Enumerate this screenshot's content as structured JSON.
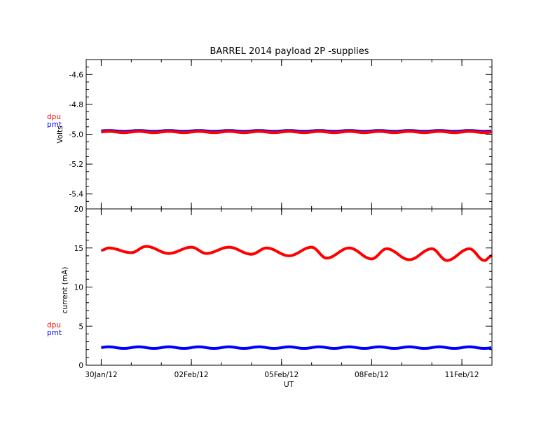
{
  "chart_data": [
    {
      "type": "line",
      "title": "BARREL 2014 payload 2P -supplies",
      "xlabel": "",
      "ylabel": "Volts",
      "ylim": [
        -5.5,
        -4.5
      ],
      "yticks": [
        "-4.6",
        "-4.8",
        "-5.0",
        "-5.2",
        "-5.4"
      ],
      "ytick_values": [
        -4.6,
        -4.8,
        -5.0,
        -5.2,
        -5.4
      ],
      "legend": [
        {
          "name": "dpu",
          "color": "#ff0000"
        },
        {
          "name": "pmt",
          "color": "#0000ff"
        }
      ],
      "series": [
        {
          "name": "pmt",
          "color": "#0000ff",
          "baseline": -4.978,
          "amplitude": 0.003,
          "period_days": 1.0
        },
        {
          "name": "dpu",
          "color": "#ff0000",
          "baseline": -4.985,
          "amplitude": 0.004,
          "period_days": 1.0
        }
      ]
    },
    {
      "type": "line",
      "xlabel": "UT",
      "ylabel": "current (mA)",
      "ylim": [
        0,
        20
      ],
      "yticks": [
        "0",
        "5",
        "10",
        "15",
        "20"
      ],
      "ytick_values": [
        0,
        5,
        10,
        15,
        20
      ],
      "x_start": "29Jan12 12:00",
      "x_end": "12Feb12 00:00",
      "xticks": [
        "30Jan/12",
        "02Feb/12",
        "05Feb/12",
        "08Feb/12",
        "11Feb/12"
      ],
      "legend": [
        {
          "name": "dpu",
          "color": "#ff0000"
        },
        {
          "name": "pmt",
          "color": "#0000ff"
        }
      ],
      "series": [
        {
          "name": "dpu",
          "color": "#ff0000",
          "peaks": [
            [
              "30Jan12 06:00",
              15.0
            ],
            [
              "31Jan12 12:00",
              15.2
            ],
            [
              "02Feb12 00:00",
              15.1
            ],
            [
              "03Feb12 06:00",
              15.1
            ],
            [
              "04Feb12 12:00",
              15.0
            ],
            [
              "06Feb12 00:00",
              15.1
            ],
            [
              "07Feb12 06:00",
              15.0
            ],
            [
              "08Feb12 12:00",
              14.9
            ],
            [
              "10Feb12 00:00",
              14.9
            ],
            [
              "11Feb12 06:00",
              14.9
            ]
          ],
          "troughs": [
            [
              "31Jan12 00:00",
              14.4
            ],
            [
              "01Feb12 06:00",
              14.3
            ],
            [
              "02Feb12 12:00",
              14.3
            ],
            [
              "04Feb12 00:00",
              14.2
            ],
            [
              "05Feb12 06:00",
              14.0
            ],
            [
              "06Feb12 12:00",
              13.7
            ],
            [
              "08Feb12 00:00",
              13.6
            ],
            [
              "09Feb12 06:00",
              13.5
            ],
            [
              "10Feb12 12:00",
              13.4
            ],
            [
              "11Feb12 18:00",
              13.4
            ]
          ],
          "start": [
            "30Jan12 00:00",
            14.7
          ],
          "end": [
            "12Feb12 00:00",
            14.0
          ]
        },
        {
          "name": "pmt",
          "color": "#0000ff",
          "baseline": 2.25,
          "amplitude": 0.1,
          "period_days": 1.0
        }
      ]
    }
  ]
}
